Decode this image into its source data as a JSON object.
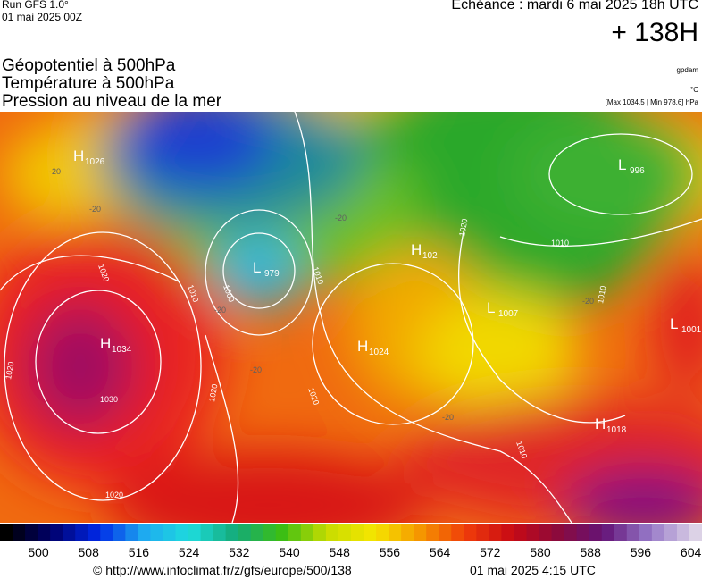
{
  "header": {
    "run": "Run GFS 1.0°",
    "run_date": "01 mai 2025 00Z",
    "echeance": "Echéance : mardi 6 mai 2025 18h UTC",
    "lead": "+ 138H",
    "fields": [
      "Géopotentiel à 500hPa",
      "Température à 500hPa",
      "Pression au niveau de la mer"
    ],
    "units": [
      "gpdam",
      "°C",
      "[Max 1034.5 | Min 978.6] hPa"
    ]
  },
  "map": {
    "centers": [
      {
        "letter": "H",
        "value": "1026"
      },
      {
        "letter": "L",
        "value": "996"
      },
      {
        "letter": "L",
        "value": "979"
      },
      {
        "letter": "H",
        "value": "102"
      },
      {
        "letter": "H",
        "value": "1034"
      },
      {
        "letter": "H",
        "value": "1024"
      },
      {
        "letter": "L",
        "value": "1007"
      },
      {
        "letter": "L",
        "value": "1001"
      },
      {
        "letter": "H",
        "value": "1018"
      }
    ],
    "isobar_labels": [
      "1020",
      "1010",
      "1000",
      "1010",
      "1020",
      "1010",
      "1020",
      "1030",
      "1020",
      "1020",
      "1010",
      "1010",
      "1020"
    ],
    "temperature_labels": [
      "-20",
      "-20",
      "-20",
      "-20",
      "-20",
      "-20",
      "-20"
    ]
  },
  "colorbar": {
    "labels": [
      500,
      508,
      516,
      524,
      532,
      540,
      548,
      556,
      564,
      572,
      580,
      588,
      596,
      604
    ]
  },
  "footer": {
    "url": "© http://www.infoclimat.fr/z/gfs/europe/500/138",
    "date": "01 mai 2025  4:15 UTC"
  }
}
